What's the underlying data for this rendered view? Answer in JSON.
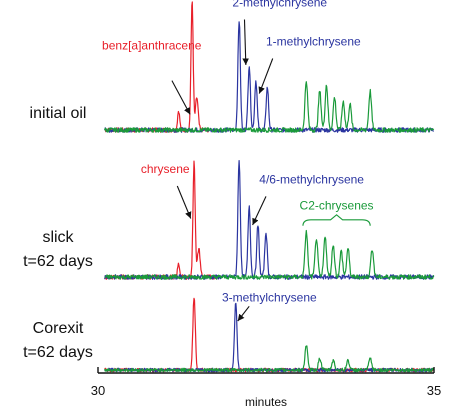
{
  "colors": {
    "red": "#e8202a",
    "blue": "#2b35a0",
    "green": "#1a9a3a",
    "black": "#111111"
  },
  "chart_data": {
    "type": "line",
    "xlabel": "minutes",
    "xlim": [
      30,
      35
    ],
    "x_ticks": [
      {
        "value": 30,
        "label": "30"
      },
      {
        "value": 35,
        "label": "35"
      }
    ],
    "panels": [
      {
        "label_lines": [
          "initial oil"
        ],
        "series": [
          {
            "name": "benz[a]anthracene",
            "color": "red",
            "peaks": [
              [
                31.2,
                0.15,
                0.016
              ],
              [
                31.4,
                1.0,
                0.016
              ],
              [
                31.47,
                0.25,
                0.02
              ]
            ],
            "range": [
              30.1,
              31.65
            ]
          },
          {
            "name": "",
            "color": "blue",
            "peaks": [
              [
                32.1,
                0.85,
                0.018
              ],
              [
                32.25,
                0.5,
                0.018
              ],
              [
                32.35,
                0.38,
                0.018
              ],
              [
                32.52,
                0.33,
                0.018
              ]
            ],
            "range": [
              30.1,
              35.0
            ]
          },
          {
            "name": "",
            "color": "green",
            "peaks": [
              [
                33.1,
                0.38,
                0.02
              ],
              [
                33.3,
                0.3,
                0.02
              ],
              [
                33.4,
                0.35,
                0.02
              ],
              [
                33.52,
                0.25,
                0.02
              ],
              [
                33.65,
                0.22,
                0.02
              ],
              [
                33.75,
                0.2,
                0.02
              ],
              [
                34.05,
                0.3,
                0.02
              ]
            ],
            "range": [
              30.1,
              35.0
            ]
          }
        ],
        "annotations": [
          {
            "text": "benz[a]anthracene",
            "color": "red",
            "x": 30.8,
            "y": 0.62,
            "anchor": "middle",
            "arrow_to": [
              31.37,
              0.12
            ],
            "arrow_from": [
              31.1,
              0.38
            ]
          },
          {
            "text": "2-methylchrysene",
            "color": "blue",
            "x": 32.0,
            "y": 0.95,
            "anchor": "start",
            "arrow_to": [
              32.2,
              0.5
            ],
            "arrow_from": [
              32.18,
              0.85
            ]
          },
          {
            "text": "1-methylchrysene",
            "color": "blue",
            "x": 32.5,
            "y": 0.65,
            "anchor": "start",
            "arrow_to": [
              32.4,
              0.28
            ],
            "arrow_from": [
              32.6,
              0.55
            ]
          }
        ]
      },
      {
        "label_lines": [
          "slick",
          "t=62 days"
        ],
        "series": [
          {
            "name": "chrysene",
            "color": "red",
            "peaks": [
              [
                31.2,
                0.1,
                0.016
              ],
              [
                31.43,
                0.9,
                0.016
              ],
              [
                31.5,
                0.22,
                0.02
              ]
            ],
            "range": [
              30.1,
              31.75
            ]
          },
          {
            "name": "",
            "color": "blue",
            "peaks": [
              [
                32.1,
                0.9,
                0.018
              ],
              [
                32.25,
                0.55,
                0.018
              ],
              [
                32.38,
                0.4,
                0.018
              ],
              [
                32.5,
                0.35,
                0.018
              ]
            ],
            "range": [
              30.1,
              35.0
            ]
          },
          {
            "name": "",
            "color": "green",
            "peaks": [
              [
                33.1,
                0.35,
                0.02
              ],
              [
                33.25,
                0.3,
                0.02
              ],
              [
                33.38,
                0.32,
                0.02
              ],
              [
                33.5,
                0.25,
                0.02
              ],
              [
                33.62,
                0.2,
                0.02
              ],
              [
                33.72,
                0.22,
                0.02
              ],
              [
                34.08,
                0.22,
                0.02
              ]
            ],
            "range": [
              30.1,
              35.0
            ]
          }
        ],
        "annotations": [
          {
            "text": "chrysene",
            "color": "red",
            "x": 31.0,
            "y": 0.8,
            "anchor": "middle",
            "arrow_to": [
              31.38,
              0.45
            ],
            "arrow_from": [
              31.18,
              0.7
            ]
          },
          {
            "text": "4/6-methylchrysene",
            "color": "blue",
            "x": 32.4,
            "y": 0.72,
            "anchor": "start",
            "arrow_to": [
              32.3,
              0.4
            ],
            "arrow_from": [
              32.5,
              0.62
            ]
          },
          {
            "text": "C2-chrysenes",
            "color": "green",
            "x": 33.55,
            "y": 0.52,
            "anchor": "middle",
            "bracket": [
              33.05,
              34.05,
              0.44
            ]
          }
        ]
      },
      {
        "label_lines": [
          "Corexit",
          "t=62 days"
        ],
        "series": [
          {
            "name": "",
            "color": "red",
            "peaks": [
              [
                31.43,
                0.75,
                0.018
              ]
            ],
            "range": [
              30.1,
              35.0
            ]
          },
          {
            "name": "3-methylchrysene",
            "color": "blue",
            "peaks": [
              [
                32.05,
                0.7,
                0.018
              ]
            ],
            "range": [
              30.1,
              35.0
            ]
          },
          {
            "name": "",
            "color": "green",
            "peaks": [
              [
                33.1,
                0.25,
                0.02
              ],
              [
                33.3,
                0.12,
                0.02
              ],
              [
                33.5,
                0.1,
                0.02
              ],
              [
                33.72,
                0.1,
                0.02
              ],
              [
                34.05,
                0.12,
                0.02
              ]
            ],
            "range": [
              30.1,
              35.0
            ]
          }
        ],
        "annotations": [
          {
            "text": "3-methylchrysene",
            "color": "blue",
            "x": 32.55,
            "y": 0.7,
            "anchor": "middle",
            "arrow_to": [
              32.08,
              0.5
            ],
            "arrow_from": [
              32.25,
              0.65
            ]
          }
        ]
      }
    ]
  }
}
